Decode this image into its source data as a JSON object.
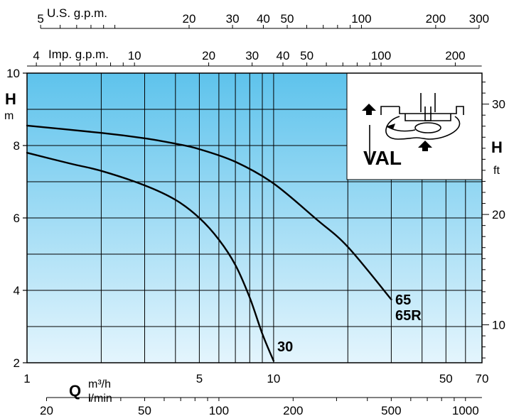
{
  "chart_data": {
    "type": "line",
    "model": "VAL",
    "x_axis": {
      "symbol": "Q",
      "scale": "log",
      "range": [
        1,
        70
      ],
      "primary_unit": "m³/h",
      "secondary_unit": "l/min",
      "ticks_m3h": [
        "1",
        "5",
        "10",
        "50",
        "70"
      ],
      "ticks_lmin": [
        "20",
        "50",
        "100",
        "200",
        "500",
        "1000"
      ]
    },
    "top_axes": [
      {
        "label": "U.S. g.p.m.",
        "ticks": [
          "5",
          "20",
          "30",
          "40",
          "50",
          "100",
          "200",
          "300"
        ]
      },
      {
        "label": "Imp. g.p.m.",
        "ticks": [
          "4",
          "10",
          "20",
          "30",
          "40",
          "50",
          "100",
          "200"
        ]
      }
    ],
    "y_axis": {
      "symbol": "H",
      "unit": "m",
      "range": [
        2,
        10
      ],
      "ticks": [
        "2",
        "4",
        "6",
        "8",
        "10"
      ]
    },
    "y_axis_right": {
      "symbol": "H",
      "unit": "ft",
      "ticks": [
        "10",
        "20",
        "30"
      ]
    },
    "grid": true,
    "series": [
      {
        "name": "30",
        "points": [
          [
            1,
            7.8
          ],
          [
            1.5,
            7.5
          ],
          [
            2,
            7.3
          ],
          [
            3,
            6.9
          ],
          [
            4,
            6.5
          ],
          [
            5,
            6.0
          ],
          [
            6,
            5.4
          ],
          [
            7,
            4.7
          ],
          [
            8,
            3.8
          ],
          [
            9,
            2.8
          ],
          [
            10,
            2.05
          ]
        ]
      },
      {
        "name": "65",
        "name_line2": "65R",
        "points": [
          [
            1,
            8.55
          ],
          [
            2,
            8.35
          ],
          [
            3,
            8.2
          ],
          [
            4,
            8.05
          ],
          [
            5,
            7.9
          ],
          [
            7,
            7.55
          ],
          [
            10,
            6.95
          ],
          [
            15,
            5.95
          ],
          [
            20,
            5.2
          ],
          [
            30,
            3.75
          ]
        ]
      }
    ]
  }
}
